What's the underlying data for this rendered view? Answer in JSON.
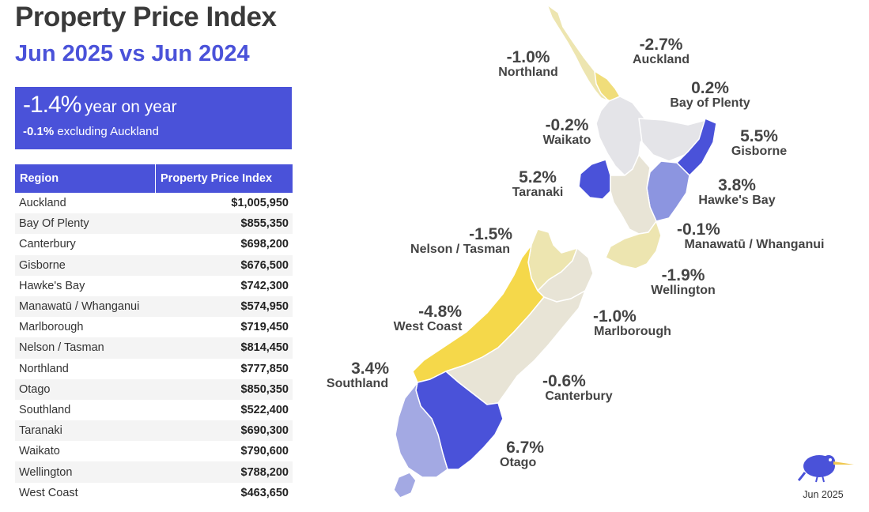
{
  "header": {
    "title": "Property Price Index",
    "subtitle": "Jun 2025 vs Jun 2024"
  },
  "summary": {
    "headline_value": "-1.4%",
    "headline_text": "year on year",
    "secondary_value": "-0.1%",
    "secondary_text": "excluding Auckland"
  },
  "table": {
    "headers": [
      "Region",
      "Property Price Index"
    ],
    "rows": [
      {
        "region": "Auckland",
        "value": "$1,005,950"
      },
      {
        "region": "Bay Of Plenty",
        "value": "$855,350"
      },
      {
        "region": "Canterbury",
        "value": "$698,200"
      },
      {
        "region": "Gisborne",
        "value": "$676,500"
      },
      {
        "region": "Hawke's Bay",
        "value": "$742,300"
      },
      {
        "region": "Manawatū / Whanganui",
        "value": "$574,950"
      },
      {
        "region": "Marlborough",
        "value": "$719,450"
      },
      {
        "region": "Nelson / Tasman",
        "value": "$814,450"
      },
      {
        "region": "Northland",
        "value": "$777,850"
      },
      {
        "region": "Otago",
        "value": "$850,350"
      },
      {
        "region": "Southland",
        "value": "$522,400"
      },
      {
        "region": "Taranaki",
        "value": "$690,300"
      },
      {
        "region": "Waikato",
        "value": "$790,600"
      },
      {
        "region": "Wellington",
        "value": "$788,200"
      },
      {
        "region": "West Coast",
        "value": "$463,650"
      }
    ]
  },
  "map": {
    "colors": {
      "strong_up": "#4a52d9",
      "mid_up": "#8c95e0",
      "light_up": "#a3a9e3",
      "neutral": "#e8e4d6",
      "neutral_grey": "#e4e4e8",
      "light_down": "#ede5b0",
      "mid_down": "#f0dd7a",
      "strong_down": "#f5d84a"
    },
    "regions": {
      "northland": {
        "pct": "-1.0%",
        "name": "Northland"
      },
      "auckland": {
        "pct": "-2.7%",
        "name": "Auckland"
      },
      "bay_of_plenty": {
        "pct": "0.2%",
        "name": "Bay of Plenty"
      },
      "waikato": {
        "pct": "-0.2%",
        "name": "Waikato"
      },
      "gisborne": {
        "pct": "5.5%",
        "name": "Gisborne"
      },
      "taranaki": {
        "pct": "5.2%",
        "name": "Taranaki"
      },
      "hawkes_bay": {
        "pct": "3.8%",
        "name": "Hawke's Bay"
      },
      "manawatu": {
        "pct": "-0.1%",
        "name": "Manawatū / Whanganui"
      },
      "nelson": {
        "pct": "-1.5%",
        "name": "Nelson / Tasman"
      },
      "wellington": {
        "pct": "-1.9%",
        "name": "Wellington"
      },
      "west_coast": {
        "pct": "-4.8%",
        "name": "West Coast"
      },
      "marlborough": {
        "pct": "-1.0%",
        "name": "Marlborough"
      },
      "southland": {
        "pct": "3.4%",
        "name": "Southland"
      },
      "canterbury": {
        "pct": "-0.6%",
        "name": "Canterbury"
      },
      "otago": {
        "pct": "6.7%",
        "name": "Otago"
      }
    }
  },
  "footer": {
    "logo_icon": "kiwi-bird-icon",
    "date": "Jun 2025"
  }
}
